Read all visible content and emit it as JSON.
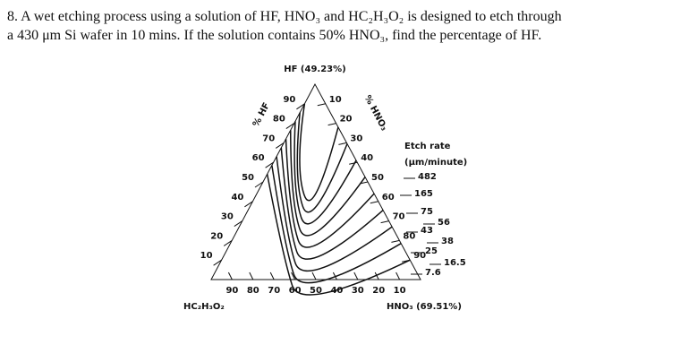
{
  "question": {
    "line1": "8. A wet etching process using a solution of HF, HNO₃ and HC₂H₃O₂ is designed to etch through",
    "line2": "a 430 μm Si wafer in 10 mins. If the solution contains 50% HNO₃, find the percentage of HF."
  },
  "diagram": {
    "top_label": "HF (49.23%)",
    "left_label": "HC₂H₃O₂",
    "right_label": "HNO₃ (69.51%)",
    "left_axis_title": "% HF",
    "right_axis_title": "% HNO₃",
    "left_ticks": [
      "90",
      "80",
      "70",
      "60",
      "50",
      "40",
      "30",
      "20",
      "10"
    ],
    "right_ticks": [
      "10",
      "20",
      "30",
      "40",
      "50",
      "60",
      "70",
      "80",
      "90"
    ],
    "bottom_ticks": [
      "90",
      "80",
      "70",
      "60",
      "50",
      "40",
      "30",
      "20",
      "10"
    ],
    "legend_title": "Etch rate",
    "legend_unit": "(μm/minute)",
    "etch_rates": [
      "482",
      "165",
      "75",
      "56",
      "43",
      "38",
      "25",
      "16.5",
      "7.6"
    ]
  }
}
